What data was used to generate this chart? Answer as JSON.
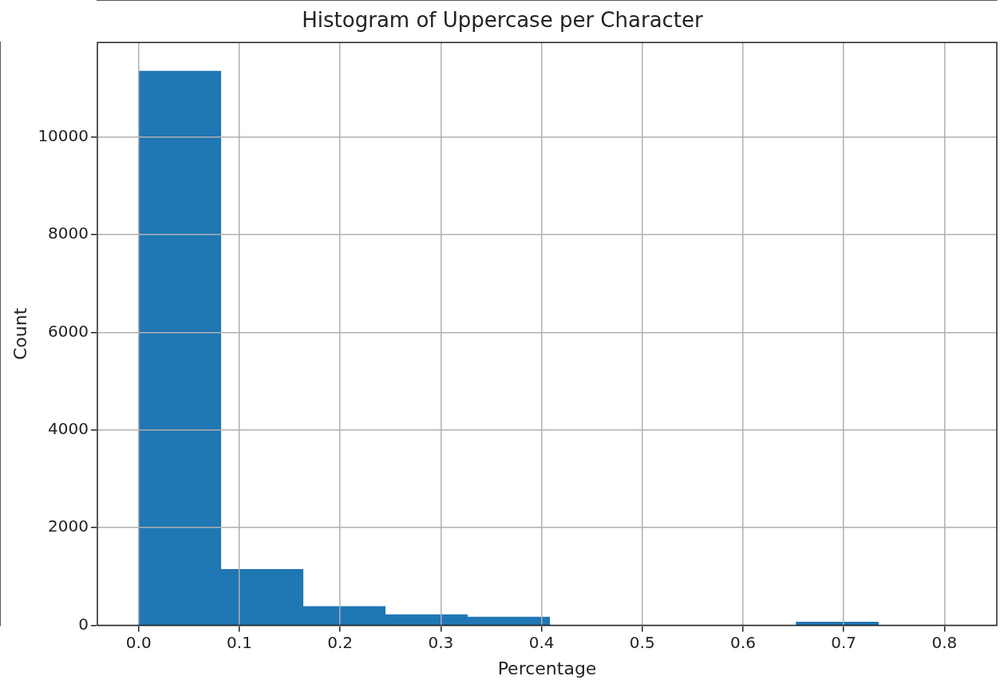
{
  "chart_data": {
    "type": "histogram",
    "title": "Histogram of Uppercase per Character",
    "xlabel": "Percentage",
    "ylabel": "Count",
    "bins": [
      0,
      0.0816,
      0.1632,
      0.2448,
      0.3264,
      0.408,
      0.4896,
      0.5712,
      0.6528,
      0.7344,
      0.816
    ],
    "values": [
      11350,
      1150,
      390,
      220,
      170,
      0,
      0,
      0,
      70,
      0
    ],
    "color": "#1f77b4",
    "xlim": [
      -0.041,
      0.852
    ],
    "xticks": [
      {
        "value": 0,
        "label": "0.0"
      },
      0.1,
      0.2,
      0.3,
      0.4,
      0.5,
      0.6,
      0.7,
      0.8
    ],
    "ylim": [
      0,
      11935
    ],
    "yticks": [
      0,
      2000,
      4000,
      6000,
      8000,
      10000
    ],
    "grid": true
  }
}
